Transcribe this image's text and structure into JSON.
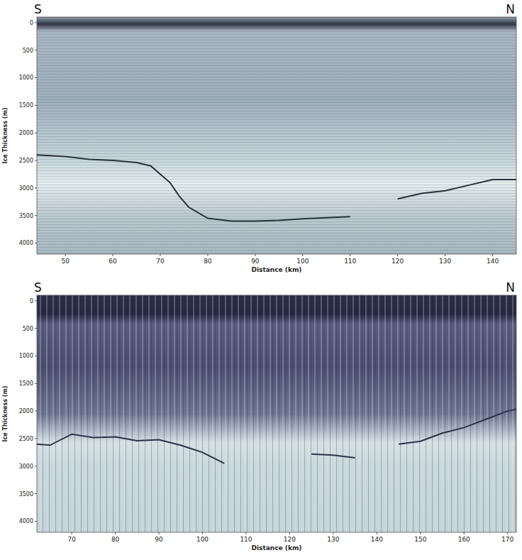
{
  "chart_data": [
    {
      "type": "radargram",
      "annotations": [
        "S",
        "N"
      ],
      "x_label": "Distance (km)",
      "y_label": "Ice Thickness (m)",
      "xlim": [
        44,
        145
      ],
      "xticks": [
        50,
        60,
        70,
        80,
        90,
        100,
        110,
        120,
        130,
        140
      ],
      "ylim": [
        4200,
        -100
      ],
      "yticks": [
        0,
        500,
        1000,
        1500,
        2000,
        2500,
        3000,
        3500,
        4000
      ],
      "series": [
        {
          "color": "#28323c",
          "line_style": "solid",
          "x": [
            44,
            50,
            55,
            60,
            65,
            68,
            70,
            72,
            74,
            76,
            80,
            85,
            90,
            95,
            100,
            105,
            110,
            112,
            120,
            125,
            130,
            135,
            140,
            145
          ],
          "values": [
            2400,
            2430,
            2480,
            2500,
            2540,
            2600,
            2750,
            2900,
            3150,
            3350,
            3550,
            3600,
            3600,
            3590,
            3560,
            3540,
            3520,
            null,
            3200,
            3100,
            3050,
            2950,
            2850,
            2850
          ]
        }
      ]
    },
    {
      "type": "radargram",
      "annotations": [
        "S",
        "N"
      ],
      "x_label": "Distance (km)",
      "y_label": "Ice Thickness (m)",
      "xlim": [
        62,
        172
      ],
      "xticks": [
        70,
        80,
        90,
        100,
        110,
        120,
        130,
        140,
        150,
        160,
        170
      ],
      "ylim": [
        4200,
        -100
      ],
      "yticks": [
        0,
        500,
        1000,
        1500,
        2000,
        2500,
        3000,
        3500,
        4000
      ],
      "series": [
        {
          "color": "#2a3346",
          "line_style": "solid",
          "x": [
            62,
            65,
            70,
            75,
            80,
            85,
            90,
            95,
            100,
            105,
            108,
            125,
            130,
            135,
            138,
            145,
            150,
            155,
            160,
            165,
            170,
            172
          ],
          "values": [
            2600,
            2620,
            2420,
            2480,
            2470,
            2540,
            2520,
            2620,
            2750,
            2950,
            null,
            2780,
            2800,
            2850,
            null,
            2600,
            2550,
            2400,
            2300,
            2150,
            2000,
            1970
          ]
        }
      ]
    }
  ]
}
